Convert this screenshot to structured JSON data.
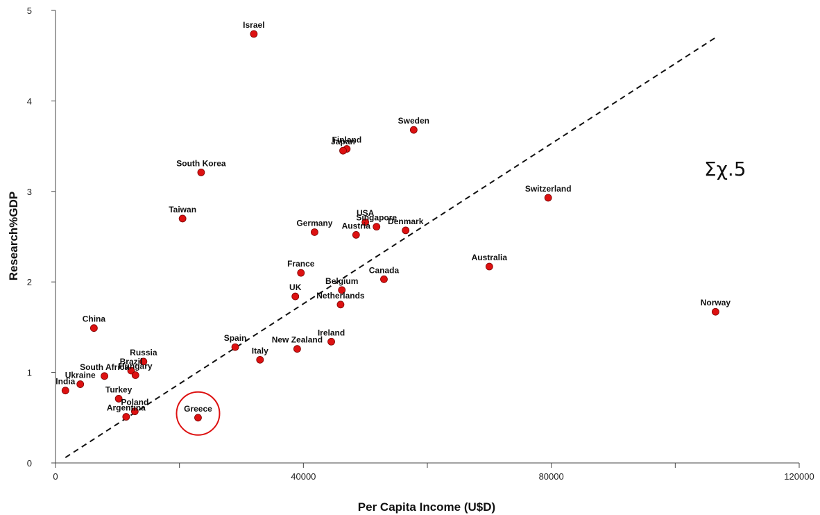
{
  "chart_data": {
    "type": "scatter",
    "title": "",
    "xlabel": "Per Capita Income (U$D)",
    "ylabel": "Research%GDP",
    "xlim": [
      0,
      120000
    ],
    "ylim": [
      0,
      5
    ],
    "x_ticks": [
      0,
      40000,
      80000,
      120000
    ],
    "x_minor_ticks": [
      20000,
      60000,
      100000
    ],
    "y_ticks": [
      0,
      1,
      2,
      3,
      4,
      5
    ],
    "grid": false,
    "point_color": "#dd1111",
    "points": [
      {
        "label": "Israel",
        "x": 32000,
        "y": 4.74
      },
      {
        "label": "Sweden",
        "x": 57800,
        "y": 3.68
      },
      {
        "label": "Finland",
        "x": 47000,
        "y": 3.47
      },
      {
        "label": "Japan",
        "x": 46400,
        "y": 3.45
      },
      {
        "label": "South Korea",
        "x": 23500,
        "y": 3.21
      },
      {
        "label": "Switzerland",
        "x": 79500,
        "y": 2.93
      },
      {
        "label": "Taiwan",
        "x": 20500,
        "y": 2.7
      },
      {
        "label": "USA",
        "x": 50000,
        "y": 2.66
      },
      {
        "label": "Singapore",
        "x": 51800,
        "y": 2.61
      },
      {
        "label": "Denmark",
        "x": 56500,
        "y": 2.57
      },
      {
        "label": "Germany",
        "x": 41800,
        "y": 2.55
      },
      {
        "label": "Austria",
        "x": 48500,
        "y": 2.52
      },
      {
        "label": "Australia",
        "x": 70000,
        "y": 2.17
      },
      {
        "label": "France",
        "x": 39600,
        "y": 2.1
      },
      {
        "label": "Canada",
        "x": 53000,
        "y": 2.03
      },
      {
        "label": "Belgium",
        "x": 46200,
        "y": 1.91
      },
      {
        "label": "UK",
        "x": 38700,
        "y": 1.84
      },
      {
        "label": "Netherlands",
        "x": 46000,
        "y": 1.75
      },
      {
        "label": "Norway",
        "x": 106500,
        "y": 1.67
      },
      {
        "label": "China",
        "x": 6200,
        "y": 1.49
      },
      {
        "label": "Ireland",
        "x": 44500,
        "y": 1.34
      },
      {
        "label": "Spain",
        "x": 29000,
        "y": 1.28
      },
      {
        "label": "New Zealand",
        "x": 39000,
        "y": 1.26
      },
      {
        "label": "Italy",
        "x": 33000,
        "y": 1.14
      },
      {
        "label": "Russia",
        "x": 14200,
        "y": 1.12
      },
      {
        "label": "Brazil",
        "x": 12200,
        "y": 1.02
      },
      {
        "label": "Hungary",
        "x": 12900,
        "y": 0.97
      },
      {
        "label": "South Africa",
        "x": 7900,
        "y": 0.96
      },
      {
        "label": "Ukraine",
        "x": 4000,
        "y": 0.87
      },
      {
        "label": "India",
        "x": 1600,
        "y": 0.8
      },
      {
        "label": "Turkey",
        "x": 10200,
        "y": 0.71
      },
      {
        "label": "Poland",
        "x": 12800,
        "y": 0.57
      },
      {
        "label": "Argentina",
        "x": 11400,
        "y": 0.51
      },
      {
        "label": "Greece",
        "x": 23000,
        "y": 0.5
      }
    ],
    "trendline": {
      "style": "dashed",
      "x": [
        1600,
        106500
      ],
      "y": [
        0.06,
        4.7
      ]
    },
    "highlight": {
      "label": "Greece",
      "shape": "circle",
      "color": "#dd1111"
    },
    "annotation": "Σχ.5"
  }
}
